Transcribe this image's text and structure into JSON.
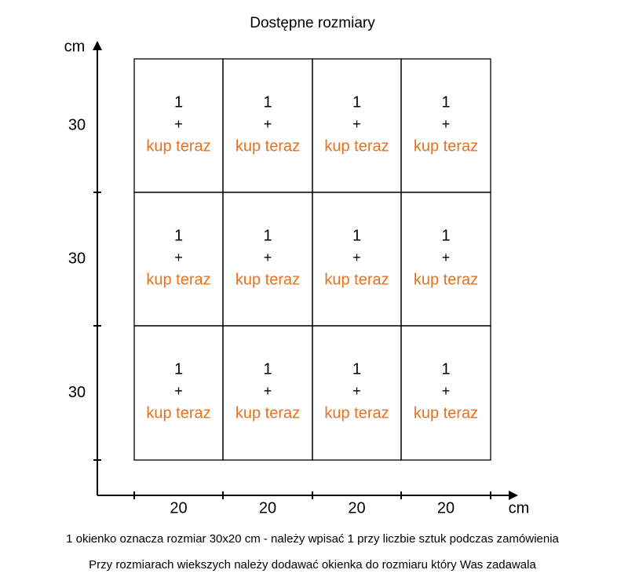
{
  "title": "Dostępne rozmiary",
  "y_axis": {
    "unit": "cm",
    "labels": [
      "30",
      "30",
      "30"
    ]
  },
  "x_axis": {
    "unit": "cm",
    "labels": [
      "20",
      "20",
      "20",
      "20"
    ]
  },
  "cells": [
    [
      {
        "count": "1",
        "sign": "+",
        "action": "kup teraz"
      },
      {
        "count": "1",
        "sign": "+",
        "action": "kup teraz"
      },
      {
        "count": "1",
        "sign": "+",
        "action": "kup teraz"
      },
      {
        "count": "1",
        "sign": "+",
        "action": "kup teraz"
      }
    ],
    [
      {
        "count": "1",
        "sign": "+",
        "action": "kup teraz"
      },
      {
        "count": "1",
        "sign": "+",
        "action": "kup teraz"
      },
      {
        "count": "1",
        "sign": "+",
        "action": "kup teraz"
      },
      {
        "count": "1",
        "sign": "+",
        "action": "kup teraz"
      }
    ],
    [
      {
        "count": "1",
        "sign": "+",
        "action": "kup teraz"
      },
      {
        "count": "1",
        "sign": "+",
        "action": "kup teraz"
      },
      {
        "count": "1",
        "sign": "+",
        "action": "kup teraz"
      },
      {
        "count": "1",
        "sign": "+",
        "action": "kup teraz"
      }
    ]
  ],
  "notes": [
    "1 okienko oznacza rozmiar 30x20 cm - należy wpisać 1 przy liczbie sztuk podczas zamówienia",
    "Przy rozmiarach wiekszych należy dodawać okienka do rozmiaru który Was zadawala"
  ]
}
